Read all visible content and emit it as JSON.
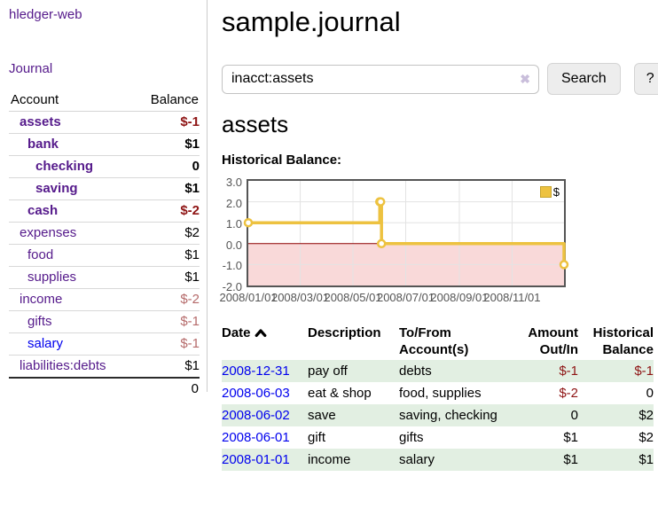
{
  "app": {
    "brand": "hledger-web",
    "nav_journal": "Journal"
  },
  "sidebar": {
    "account_header": "Account",
    "balance_header": "Balance",
    "accounts": [
      {
        "name": "assets",
        "level": 1,
        "bold": true,
        "balance": "$-1",
        "balance_color": "negative"
      },
      {
        "name": "bank",
        "level": 2,
        "bold": true,
        "balance": "$1",
        "balance_color": "normal"
      },
      {
        "name": "checking",
        "level": 3,
        "bold": true,
        "balance": "0",
        "balance_color": "normal"
      },
      {
        "name": "saving",
        "level": 3,
        "bold": true,
        "balance": "$1",
        "balance_color": "normal"
      },
      {
        "name": "cash",
        "level": 2,
        "bold": true,
        "balance": "$-2",
        "balance_color": "negative"
      },
      {
        "name": "expenses",
        "level": 1,
        "bold": false,
        "balance": "$2",
        "balance_color": "normal"
      },
      {
        "name": "food",
        "level": 2,
        "bold": false,
        "balance": "$1",
        "balance_color": "normal"
      },
      {
        "name": "supplies",
        "level": 2,
        "bold": false,
        "balance": "$1",
        "balance_color": "normal"
      },
      {
        "name": "income",
        "level": 1,
        "bold": false,
        "balance": "$-2",
        "balance_color": "muted-negative"
      },
      {
        "name": "gifts",
        "level": 2,
        "bold": false,
        "balance": "$-1",
        "balance_color": "muted-negative"
      },
      {
        "name": "salary",
        "level": 2,
        "bold": false,
        "balance": "$-1",
        "balance_color": "muted-negative",
        "link_color": "blue"
      },
      {
        "name": "liabilities:debts",
        "level": 1,
        "bold": false,
        "balance": "$1",
        "balance_color": "normal"
      }
    ],
    "total": "0"
  },
  "header": {
    "title": "sample.journal"
  },
  "search": {
    "value": "inacct:assets",
    "clear_icon": "✖",
    "button_label": "Search",
    "help_label": "?"
  },
  "account_page": {
    "title": "assets",
    "chart_label": "Historical Balance:"
  },
  "chart_data": {
    "type": "line",
    "title": "Historical Balance:",
    "step": true,
    "series": [
      {
        "name": "$",
        "color": "#EDC240",
        "points": [
          [
            "2008-01-01",
            1
          ],
          [
            "2008-06-01",
            2
          ],
          [
            "2008-06-02",
            2
          ],
          [
            "2008-06-03",
            0
          ],
          [
            "2008-12-31",
            -1
          ]
        ]
      }
    ],
    "xlim": [
      "2008-01-01",
      "2008-12-31"
    ],
    "ylim": [
      -2,
      3
    ],
    "x_ticks": [
      {
        "date": "2008-01-01",
        "label": "2008/01/01"
      },
      {
        "date": "2008-03-01",
        "label": "2008/03/01"
      },
      {
        "date": "2008-05-01",
        "label": "2008/05/01"
      },
      {
        "date": "2008-07-01",
        "label": "2008/07/01"
      },
      {
        "date": "2008-09-01",
        "label": "2008/09/01"
      },
      {
        "date": "2008-11-01",
        "label": "2008/11/01"
      }
    ],
    "y_ticks": [
      "3.0",
      "2.0",
      "1.0",
      "0.0",
      "-1.0",
      "-2.0"
    ],
    "grid": true,
    "legend_position": "top-right",
    "legend": {
      "label": "$",
      "color": "#EDC240"
    },
    "negative_fill": "#f9d9d9",
    "zero_line_color": "#8e0000",
    "grid_color": "#e3e3e3"
  },
  "register": {
    "columns": [
      "Date",
      "Description",
      "To/From Account(s)",
      "Amount Out/In",
      "Historical Balance"
    ],
    "sort": "date-ascending",
    "rows": [
      {
        "date": "2008-12-31",
        "description": "pay off",
        "accounts": "debts",
        "amount": "$-1",
        "balance": "$-1"
      },
      {
        "date": "2008-06-03",
        "description": "eat & shop",
        "accounts": "food, supplies",
        "amount": "$-2",
        "balance": "0"
      },
      {
        "date": "2008-06-02",
        "description": "save",
        "accounts": "saving, checking",
        "amount": "0",
        "balance": "$2"
      },
      {
        "date": "2008-06-01",
        "description": "gift",
        "accounts": "gifts",
        "amount": "$1",
        "balance": "$2"
      },
      {
        "date": "2008-01-01",
        "description": "income",
        "accounts": "salary",
        "amount": "$1",
        "balance": "$1"
      }
    ]
  }
}
